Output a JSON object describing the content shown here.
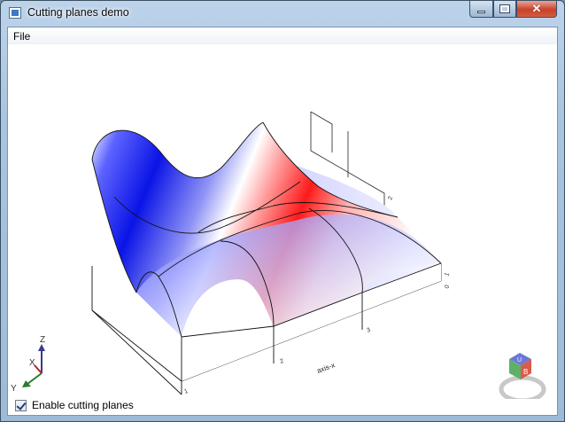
{
  "window": {
    "title": "Cutting planes demo"
  },
  "menu": {
    "file_label": "File"
  },
  "plot": {
    "axis_label": "axis-x",
    "tick_labels": [
      "1",
      "2",
      "3"
    ],
    "depth_tick_labels": [
      "0",
      "1",
      "2"
    ]
  },
  "triad": {
    "z_label": "Z",
    "x_label": "X",
    "y_label": "Y"
  },
  "view_cube": {
    "face_top": "U",
    "face_front": "B"
  },
  "options": {
    "cutting_planes_label": "Enable cutting planes",
    "cutting_planes_checked": true
  },
  "colors": {
    "positive": "#ff1a1a",
    "negative": "#0a14e6",
    "neutral": "#ffffff"
  }
}
